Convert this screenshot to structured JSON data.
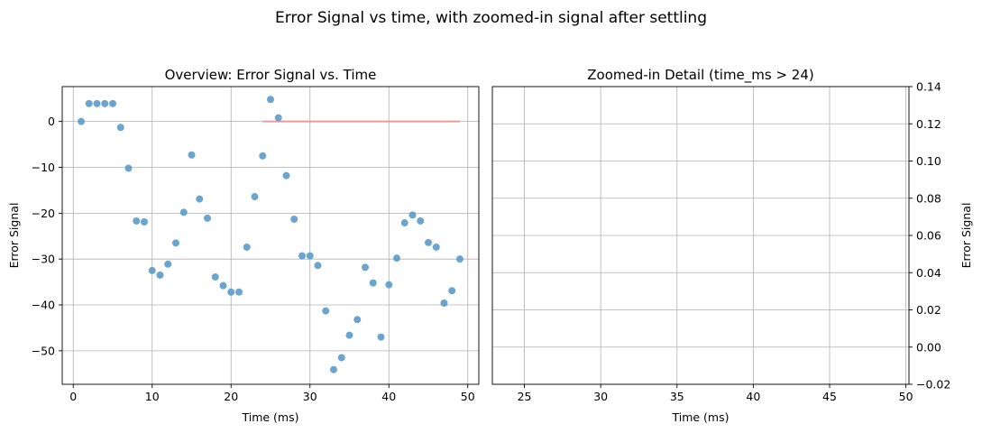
{
  "figure": {
    "suptitle": "Error Signal vs time, with zoomed-in signal after settling"
  },
  "chart_data": [
    {
      "type": "scatter",
      "title": "Overview: Error Signal vs. Time",
      "xlabel": "Time (ms)",
      "ylabel": "Error Signal",
      "xlim": [
        -1.4,
        51.4
      ],
      "ylim": [
        -57.3,
        7.6
      ],
      "xticks": [
        0,
        10,
        20,
        30,
        40,
        50
      ],
      "yticks": [
        0,
        -10,
        -20,
        -30,
        -40,
        -50
      ],
      "grid": true,
      "point_color": "#5b9bc9",
      "reference_line": {
        "x": [
          24,
          49
        ],
        "y": 0,
        "color": "#e89b9b"
      },
      "x": [
        1,
        2,
        3,
        4,
        5,
        6,
        7,
        8,
        9,
        10,
        11,
        12,
        13,
        14,
        15,
        16,
        17,
        18,
        19,
        20,
        21,
        22,
        23,
        24,
        25,
        26,
        27,
        28,
        29,
        30,
        31,
        32,
        33,
        34,
        35,
        36,
        37,
        38,
        39,
        40,
        41,
        42,
        43,
        44,
        45,
        46,
        47,
        48,
        49
      ],
      "y": [
        0,
        3.9,
        3.9,
        3.9,
        3.9,
        -1.3,
        -10.2,
        -21.7,
        -21.9,
        -32.5,
        -33.5,
        -31.1,
        -26.5,
        -19.8,
        -7.3,
        -16.9,
        -21.1,
        -33.9,
        -35.8,
        -37.2,
        -37.2,
        -27.4,
        -16.4,
        -7.5,
        4.8,
        0.8,
        -11.8,
        -21.3,
        -29.3,
        -29.3,
        -31.4,
        -41.3,
        -54.1,
        -51.5,
        -46.6,
        -43.2,
        -31.8,
        -35.2,
        -47.0,
        -35.6,
        -29.8,
        -22.1,
        -20.4,
        -21.7,
        -26.4,
        -27.4,
        -39.6,
        -36.9,
        -30.0
      ]
    },
    {
      "type": "scatter",
      "title": "Zoomed-in Detail (time_ms > 24)",
      "xlabel": "Time (ms)",
      "ylabel": "Error Signal",
      "xlim": [
        22.9,
        50.2
      ],
      "ylim": [
        -0.02,
        0.14
      ],
      "xticks": [
        25,
        30,
        35,
        40,
        45,
        50
      ],
      "yticks": [
        -0.02,
        0.0,
        0.02,
        0.04,
        0.06,
        0.08,
        0.1,
        0.12,
        0.14
      ],
      "ytick_labels": [
        "−0.02",
        "0.00",
        "0.02",
        "0.04",
        "0.06",
        "0.08",
        "0.10",
        "0.12",
        "0.14"
      ],
      "yaxis_side": "right",
      "grid": true,
      "x": [],
      "y": []
    }
  ]
}
